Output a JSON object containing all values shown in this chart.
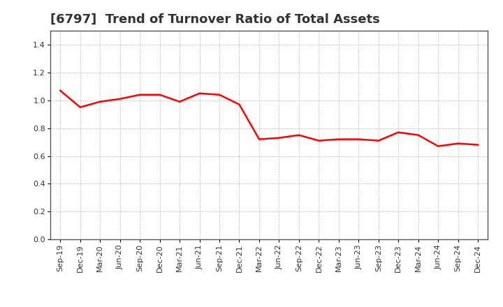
{
  "title": "[6797]  Trend of Turnover Ratio of Total Assets",
  "labels": [
    "Sep-19",
    "Dec-19",
    "Mar-20",
    "Jun-20",
    "Sep-20",
    "Dec-20",
    "Mar-21",
    "Jun-21",
    "Sep-21",
    "Dec-21",
    "Mar-22",
    "Jun-22",
    "Sep-22",
    "Dec-22",
    "Mar-23",
    "Jun-23",
    "Sep-23",
    "Dec-23",
    "Mar-24",
    "Jun-24",
    "Sep-24",
    "Dec-24"
  ],
  "values": [
    1.07,
    0.95,
    0.99,
    1.01,
    1.04,
    1.04,
    0.99,
    1.05,
    1.04,
    0.97,
    0.72,
    0.73,
    0.75,
    0.71,
    0.72,
    0.72,
    0.71,
    0.77,
    0.75,
    0.67,
    0.69,
    0.68
  ],
  "line_color": "#FF0000",
  "line_width": 1.8,
  "ylim": [
    0.0,
    1.5
  ],
  "yticks": [
    0.0,
    0.2,
    0.4,
    0.6,
    0.8,
    1.0,
    1.2,
    1.4
  ],
  "background_color": "#ffffff",
  "plot_bg_color": "#f0f0f0",
  "grid_color": "#aaaaaa",
  "spine_color": "#555555",
  "title_fontsize": 13,
  "tick_fontsize": 8,
  "title_color": "#333333"
}
